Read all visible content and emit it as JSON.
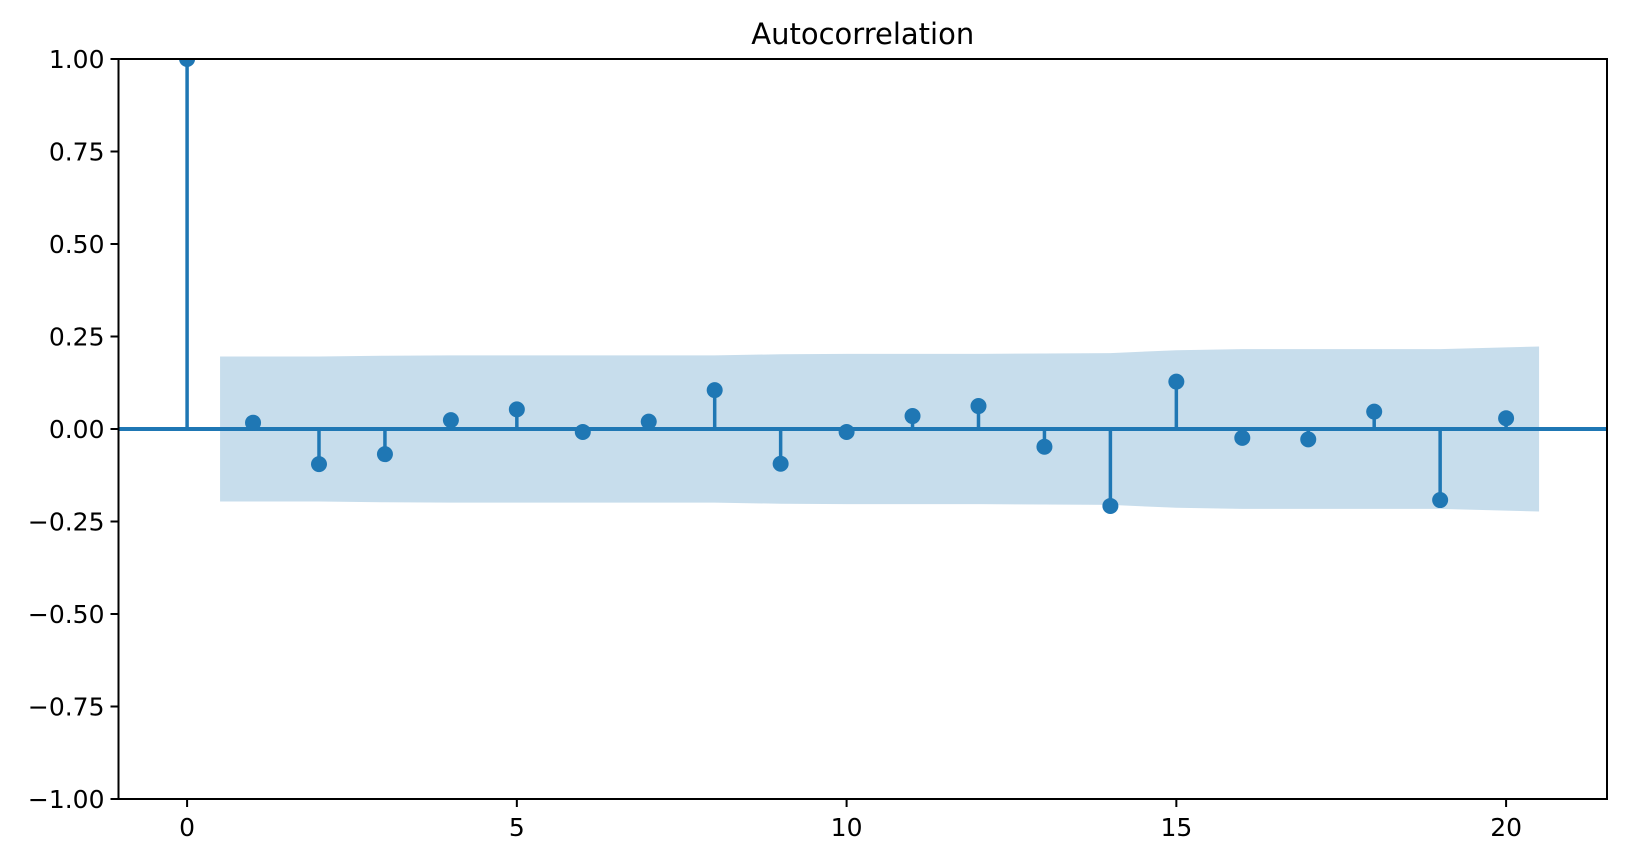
{
  "figure": {
    "background": "#ffffff"
  },
  "chart_data": {
    "type": "stem",
    "title": "Autocorrelation",
    "xlabel": "",
    "ylabel": "",
    "grid": false,
    "legend": null,
    "x": [
      0,
      1,
      2,
      3,
      4,
      5,
      6,
      7,
      8,
      9,
      10,
      11,
      12,
      13,
      14,
      15,
      16,
      17,
      18,
      19,
      20
    ],
    "values": [
      1.0,
      0.017,
      -0.095,
      -0.068,
      0.024,
      0.053,
      -0.008,
      0.02,
      0.105,
      -0.094,
      -0.008,
      0.035,
      0.062,
      -0.048,
      -0.208,
      0.128,
      -0.024,
      -0.028,
      0.047,
      -0.192,
      0.029
    ],
    "confidence_band": {
      "x_start": 0.5,
      "x_end": 20.5,
      "lags": [
        1,
        2,
        3,
        4,
        5,
        6,
        7,
        8,
        9,
        10,
        11,
        12,
        13,
        14,
        15,
        16,
        17,
        18,
        19,
        20
      ],
      "half_width": [
        0.196,
        0.196,
        0.198,
        0.199,
        0.199,
        0.199,
        0.199,
        0.199,
        0.202,
        0.203,
        0.203,
        0.203,
        0.204,
        0.205,
        0.213,
        0.216,
        0.216,
        0.216,
        0.216,
        0.223
      ]
    },
    "xlim": [
      -1.04,
      21.53
    ],
    "ylim": [
      -1.0,
      1.0
    ],
    "x_tick_values": [
      0,
      5,
      10,
      15,
      20
    ],
    "x_tick_labels": [
      "0",
      "5",
      "10",
      "15",
      "20"
    ],
    "y_tick_values": [
      1.0,
      0.75,
      0.5,
      0.25,
      0.0,
      -0.25,
      -0.5,
      -0.75,
      -1.0
    ],
    "y_tick_labels": [
      "1.00",
      "0.75",
      "0.50",
      "0.25",
      "0.00",
      "−0.25",
      "−0.50",
      "−0.75",
      "−1.00"
    ],
    "colors": {
      "stem": "#1f77b4",
      "marker": "#1f77b4",
      "band_fill": "#1f77b4",
      "band_opacity": 0.25,
      "zero_line": "#1f77b4",
      "spine": "#000000",
      "tick": "#000000",
      "title_color": "#000000"
    }
  }
}
